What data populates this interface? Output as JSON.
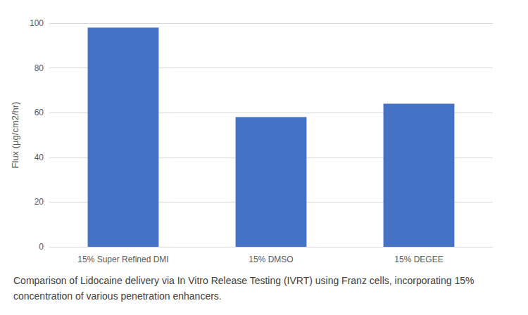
{
  "chart_data": {
    "type": "bar",
    "subtitle": "Comparison of Lidocaine delivery via In Vitro Release Testing (IVRT) using Franz cells, incorporating 15% concentration of various penetration enhancers.",
    "ylabel": "Flux (µg/cm2/hr)",
    "categories": [
      "15% Super Refined DMI",
      "15% DMSO",
      "15% DEGEE"
    ],
    "values": [
      98,
      58,
      64
    ],
    "color": "#4472c4",
    "ylim": [
      0,
      100
    ],
    "yticks": [
      0,
      20,
      40,
      60,
      80,
      100
    ],
    "grid": true
  }
}
